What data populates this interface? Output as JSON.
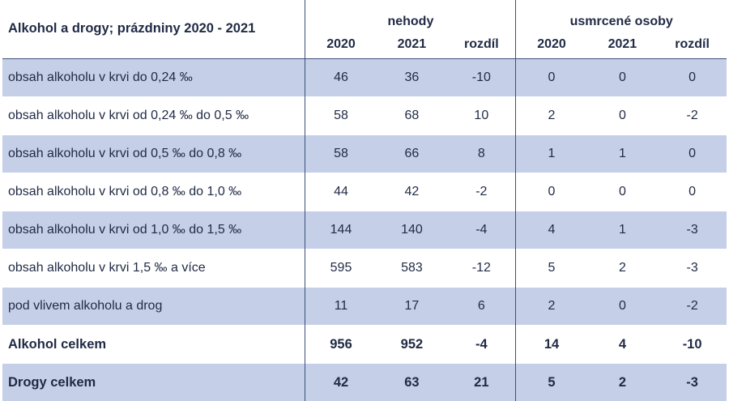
{
  "title": "Alkohol a drogy; prázdniny 2020 - 2021",
  "groups": {
    "accidents": "nehody",
    "fatalities": "usmrcené osoby"
  },
  "subheaders": [
    "2020",
    "2021",
    "rozdíl",
    "2020",
    "2021",
    "rozdíl"
  ],
  "rows": [
    {
      "label": "obsah alkoholu v krvi do 0,24 ‰",
      "values": [
        "46",
        "36",
        "-10",
        "0",
        "0",
        "0"
      ]
    },
    {
      "label": "obsah alkoholu v krvi od 0,24 ‰ do 0,5 ‰",
      "values": [
        "58",
        "68",
        "10",
        "2",
        "0",
        "-2"
      ]
    },
    {
      "label": "obsah alkoholu v krvi od 0,5 ‰ do 0,8 ‰",
      "values": [
        "58",
        "66",
        "8",
        "1",
        "1",
        "0"
      ]
    },
    {
      "label": "obsah alkoholu v krvi od 0,8 ‰ do 1,0 ‰",
      "values": [
        "44",
        "42",
        "-2",
        "0",
        "0",
        "0"
      ]
    },
    {
      "label": "obsah alkoholu v krvi od 1,0 ‰ do 1,5 ‰",
      "values": [
        "144",
        "140",
        "-4",
        "4",
        "1",
        "-3"
      ]
    },
    {
      "label": "obsah alkoholu v krvi 1,5 ‰ a více",
      "values": [
        "595",
        "583",
        "-12",
        "5",
        "2",
        "-3"
      ]
    },
    {
      "label": "pod vlivem alkoholu a drog",
      "values": [
        "11",
        "17",
        "6",
        "2",
        "0",
        "-2"
      ]
    },
    {
      "label": "Alkohol celkem",
      "values": [
        "956",
        "952",
        "-4",
        "14",
        "4",
        "-10"
      ],
      "bold": true
    },
    {
      "label": "Drogy celkem",
      "values": [
        "42",
        "63",
        "21",
        "5",
        "2",
        "-3"
      ],
      "bold": true
    }
  ],
  "colors": {
    "band": "#c5cfe8",
    "text": "#1f2a44",
    "rule": "#3c4f7a"
  }
}
